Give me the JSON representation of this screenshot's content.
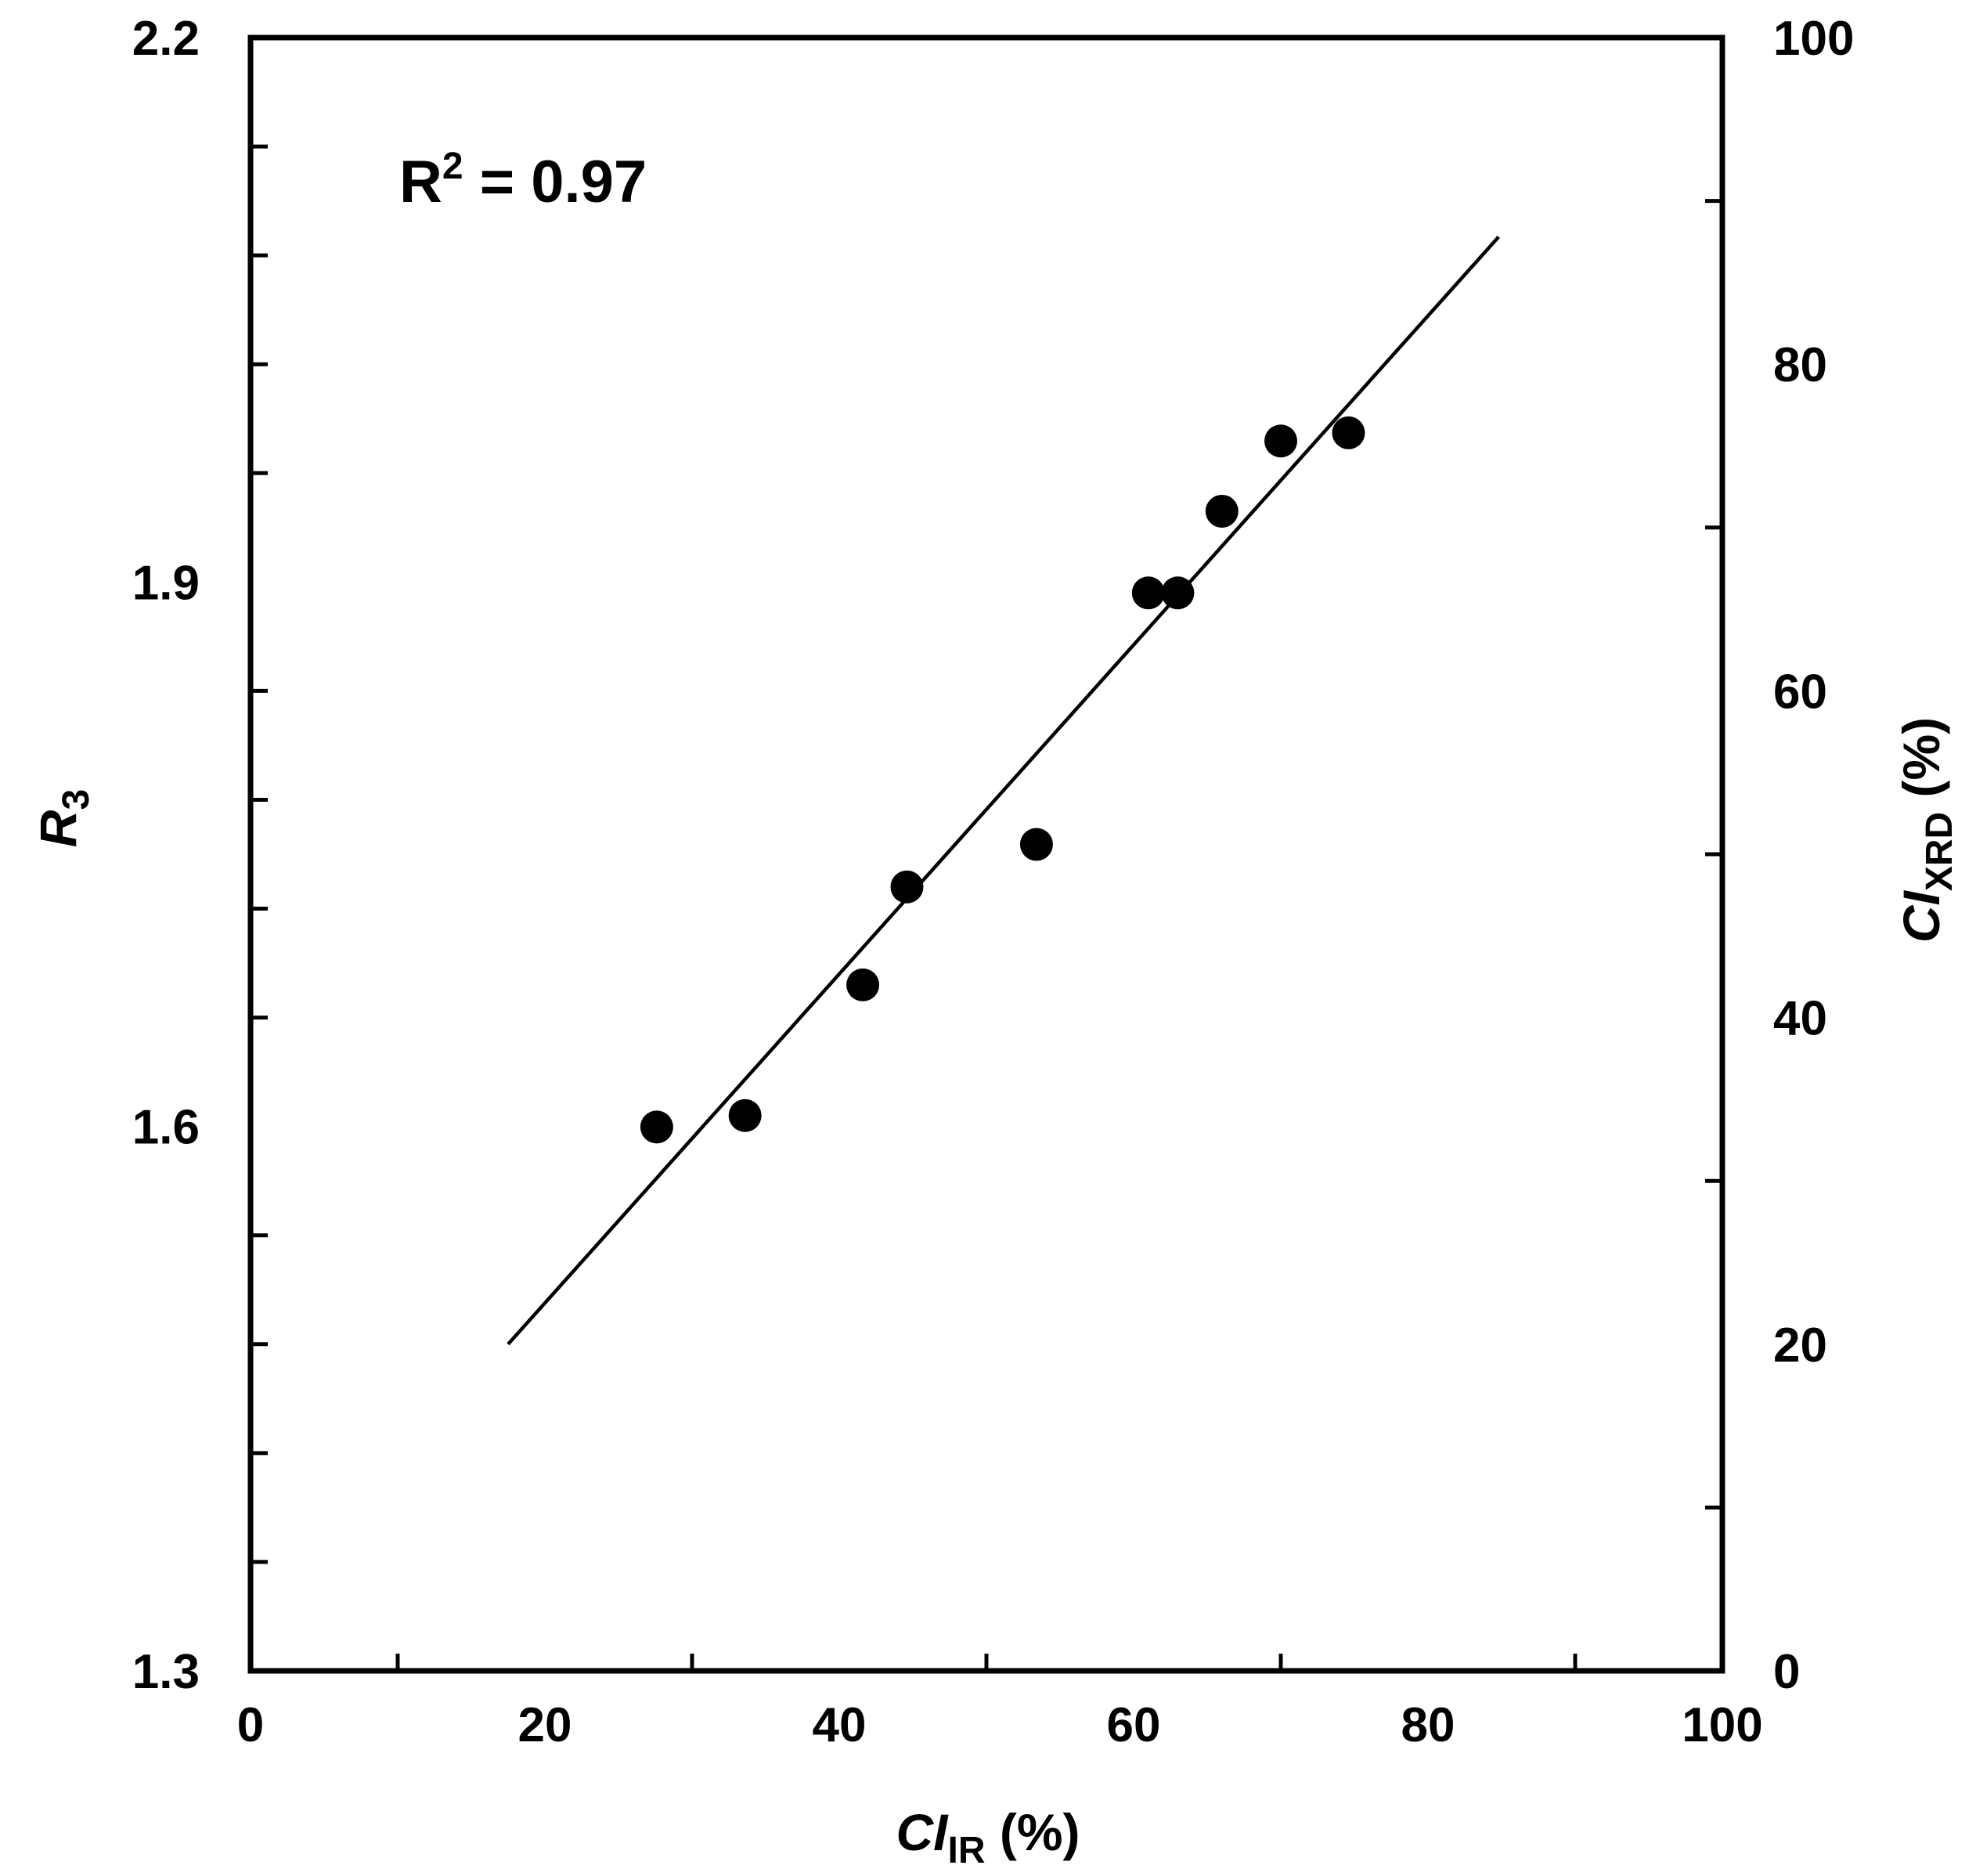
{
  "chart_data": {
    "type": "scatter",
    "annotation": {
      "text": "R",
      "sup": "2",
      "rest": " = 0.97"
    },
    "x_axis": {
      "label_main": "CI",
      "label_sub": "IR",
      "label_unit": " (%)",
      "range": [
        0,
        100
      ],
      "ticks": [
        0,
        20,
        40,
        60,
        80,
        100
      ]
    },
    "y_axis_left": {
      "label_main": "R",
      "label_sub": "3",
      "range": [
        1.3,
        2.2
      ],
      "ticks": [
        "1.3",
        "1.6",
        "1.9",
        "2.2"
      ]
    },
    "y_axis_right": {
      "label_main": "CI",
      "label_sub": "XRD",
      "label_unit": " (%)",
      "range": [
        0,
        100
      ],
      "ticks": [
        0,
        20,
        40,
        60,
        80,
        100
      ]
    },
    "points_right_axis": [
      {
        "x": 27.6,
        "y": 33.3
      },
      {
        "x": 33.6,
        "y": 34.0
      },
      {
        "x": 41.6,
        "y": 42.0
      },
      {
        "x": 44.6,
        "y": 48.0
      },
      {
        "x": 53.4,
        "y": 50.6
      },
      {
        "x": 61.0,
        "y": 66.0
      },
      {
        "x": 63.0,
        "y": 66.0
      },
      {
        "x": 66.0,
        "y": 71.0
      },
      {
        "x": 70.0,
        "y": 75.3
      },
      {
        "x": 74.6,
        "y": 75.8
      }
    ],
    "fit_line_right_axis": [
      {
        "x": 17.5,
        "y": 20.0
      },
      {
        "x": 84.8,
        "y": 87.8
      }
    ],
    "grid": false,
    "legend": "none"
  }
}
